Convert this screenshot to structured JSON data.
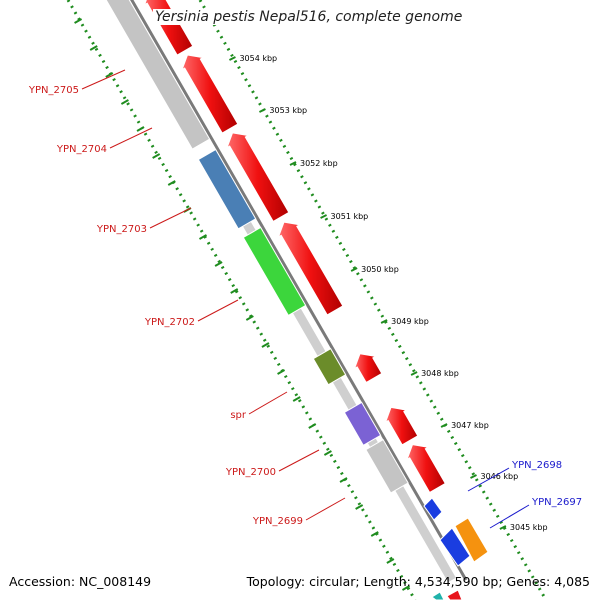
{
  "map": {
    "title": "Yersinia pestis Nepal516, complete genome",
    "accession_text": "Accession: NC_008149",
    "info_text": "Topology: circular; Length: 4,534,590 bp; Genes: 4,085",
    "strand_colors": {
      "reverse_cds": "#e8151c",
      "forward_cds": "#1a3de0",
      "backbone": "#7a7a7a",
      "ticks_green": "#1f8c1f",
      "label_reverse": "#cc1a1a",
      "label_forward": "#1a1acc"
    },
    "kbp_ticks": [
      "3054 kbp",
      "3053 kbp",
      "3052 kbp",
      "3051 kbp",
      "3050 kbp",
      "3049 kbp",
      "3048 kbp",
      "3047 kbp",
      "3046 kbp",
      "3045 kbp"
    ],
    "genes_left": [
      {
        "label": "YPN_2705",
        "color": "#c4c4c4"
      },
      {
        "label": "YPN_2704",
        "color": "#c4c4c4"
      },
      {
        "label": "YPN_2703",
        "color": "#4a7fb5"
      },
      {
        "label": "YPN_2702",
        "color": "#3cd63c"
      },
      {
        "label": "spr",
        "color": "#6b8c2a"
      },
      {
        "label": "YPN_2700",
        "color": "#7b62d4"
      },
      {
        "label": "YPN_2699",
        "color": "#c4c4c4"
      }
    ],
    "genes_right": [
      {
        "label": "YPN_2698",
        "color": "#1a3de0"
      },
      {
        "label": "YPN_2697",
        "color": "#f5920f"
      }
    ]
  }
}
